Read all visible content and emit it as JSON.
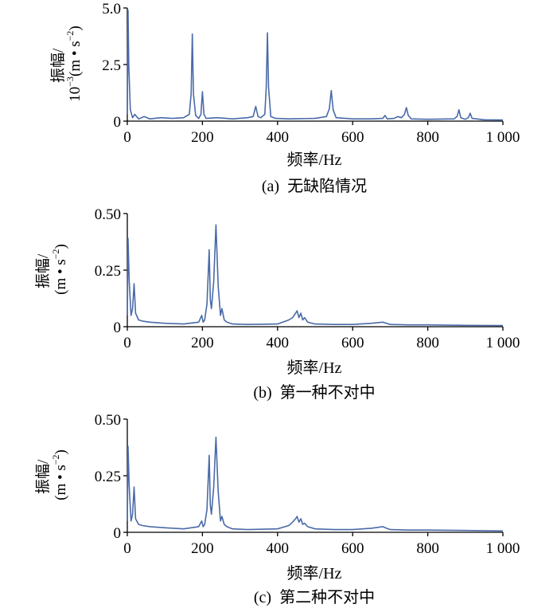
{
  "colors": {
    "series": "#4a6aa8",
    "axis": "#000000"
  },
  "chart_data": [
    {
      "type": "line",
      "caption": "(a)  无缺陷情况",
      "xlabel": "频率/Hz",
      "ylabel_lines": [
        "振幅/",
        "10",
        "−3",
        "(m • s",
        "−2",
        ")"
      ],
      "xlim": [
        0,
        1000
      ],
      "ylim": [
        0,
        5.0
      ],
      "xticks": [
        0,
        200,
        400,
        600,
        800,
        1000
      ],
      "xtick_labels": [
        "0",
        "200",
        "400",
        "600",
        "800",
        "1 000"
      ],
      "yticks": [
        0,
        2.5,
        5.0
      ],
      "ytick_labels": [
        "0",
        "2.5",
        "5.0"
      ],
      "grid": false,
      "series": [
        {
          "x": [
            0,
            2,
            4,
            8,
            14,
            20,
            30,
            45,
            60,
            90,
            120,
            150,
            165,
            170,
            173,
            176,
            182,
            190,
            196,
            200,
            204,
            210,
            240,
            280,
            320,
            335,
            342,
            348,
            355,
            366,
            370,
            373,
            376,
            382,
            395,
            430,
            500,
            530,
            538,
            543,
            548,
            556,
            600,
            650,
            680,
            686,
            692,
            710,
            720,
            730,
            738,
            743,
            748,
            756,
            800,
            870,
            878,
            883,
            888,
            900,
            908,
            913,
            918,
            950,
            1000
          ],
          "y": [
            0.3,
            4.9,
            2.4,
            0.5,
            0.15,
            0.3,
            0.1,
            0.2,
            0.1,
            0.15,
            0.12,
            0.15,
            0.3,
            1.2,
            3.85,
            1.2,
            0.25,
            0.12,
            0.3,
            1.3,
            0.3,
            0.12,
            0.15,
            0.1,
            0.15,
            0.2,
            0.65,
            0.2,
            0.15,
            0.3,
            1.5,
            3.9,
            1.5,
            0.2,
            0.12,
            0.1,
            0.12,
            0.2,
            0.55,
            1.35,
            0.5,
            0.15,
            0.1,
            0.1,
            0.12,
            0.25,
            0.1,
            0.12,
            0.2,
            0.15,
            0.3,
            0.6,
            0.25,
            0.1,
            0.08,
            0.1,
            0.2,
            0.5,
            0.15,
            0.08,
            0.15,
            0.35,
            0.12,
            0.06,
            0.05
          ]
        }
      ]
    },
    {
      "type": "line",
      "caption": "(b)  第一种不对中",
      "xlabel": "频率/Hz",
      "ylabel_lines": [
        "振幅/",
        "(m • s",
        "−2",
        ")"
      ],
      "xlim": [
        0,
        1000
      ],
      "ylim": [
        0,
        0.5
      ],
      "xticks": [
        0,
        200,
        400,
        600,
        800,
        1000
      ],
      "xtick_labels": [
        "0",
        "200",
        "400",
        "600",
        "800",
        "1 000"
      ],
      "yticks": [
        0,
        0.25,
        0.5
      ],
      "ytick_labels": [
        "0",
        "0.25",
        "0.50"
      ],
      "grid": false,
      "series": [
        {
          "x": [
            0,
            2,
            5,
            10,
            14,
            18,
            22,
            30,
            40,
            60,
            100,
            150,
            190,
            198,
            202,
            206,
            212,
            218,
            221,
            224,
            230,
            236,
            242,
            248,
            252,
            258,
            265,
            280,
            320,
            400,
            430,
            440,
            448,
            452,
            457,
            462,
            467,
            472,
            480,
            500,
            550,
            600,
            650,
            680,
            690,
            700,
            750,
            800,
            900,
            1000
          ],
          "y": [
            0.05,
            0.39,
            0.2,
            0.05,
            0.08,
            0.19,
            0.06,
            0.03,
            0.025,
            0.02,
            0.015,
            0.012,
            0.02,
            0.05,
            0.02,
            0.03,
            0.1,
            0.34,
            0.12,
            0.08,
            0.2,
            0.45,
            0.18,
            0.05,
            0.08,
            0.03,
            0.02,
            0.012,
            0.01,
            0.012,
            0.03,
            0.04,
            0.06,
            0.07,
            0.04,
            0.06,
            0.03,
            0.04,
            0.02,
            0.012,
            0.01,
            0.01,
            0.015,
            0.02,
            0.015,
            0.01,
            0.008,
            0.008,
            0.006,
            0.005
          ]
        }
      ]
    },
    {
      "type": "line",
      "caption": "(c)  第二种不对中",
      "xlabel": "频率/Hz",
      "ylabel_lines": [
        "振幅/",
        "(m • s",
        "−2",
        ")"
      ],
      "xlim": [
        0,
        1000
      ],
      "ylim": [
        0,
        0.5
      ],
      "xticks": [
        0,
        200,
        400,
        600,
        800,
        1000
      ],
      "xtick_labels": [
        "0",
        "200",
        "400",
        "600",
        "800",
        "1 000"
      ],
      "yticks": [
        0,
        0.25,
        0.5
      ],
      "ytick_labels": [
        "0",
        "0.25",
        "0.50"
      ],
      "grid": false,
      "series": [
        {
          "x": [
            0,
            2,
            5,
            10,
            14,
            18,
            22,
            30,
            40,
            60,
            100,
            150,
            190,
            198,
            202,
            206,
            212,
            218,
            221,
            224,
            230,
            236,
            242,
            248,
            252,
            258,
            265,
            280,
            320,
            400,
            430,
            440,
            448,
            452,
            457,
            462,
            467,
            472,
            480,
            500,
            550,
            600,
            650,
            680,
            690,
            700,
            750,
            800,
            900,
            1000
          ],
          "y": [
            0.05,
            0.38,
            0.2,
            0.05,
            0.08,
            0.2,
            0.06,
            0.035,
            0.03,
            0.025,
            0.02,
            0.015,
            0.025,
            0.05,
            0.025,
            0.035,
            0.1,
            0.34,
            0.12,
            0.08,
            0.2,
            0.42,
            0.18,
            0.05,
            0.07,
            0.035,
            0.025,
            0.015,
            0.012,
            0.015,
            0.03,
            0.045,
            0.06,
            0.07,
            0.045,
            0.06,
            0.035,
            0.04,
            0.025,
            0.015,
            0.012,
            0.012,
            0.018,
            0.025,
            0.018,
            0.012,
            0.01,
            0.01,
            0.008,
            0.006
          ]
        }
      ]
    }
  ]
}
